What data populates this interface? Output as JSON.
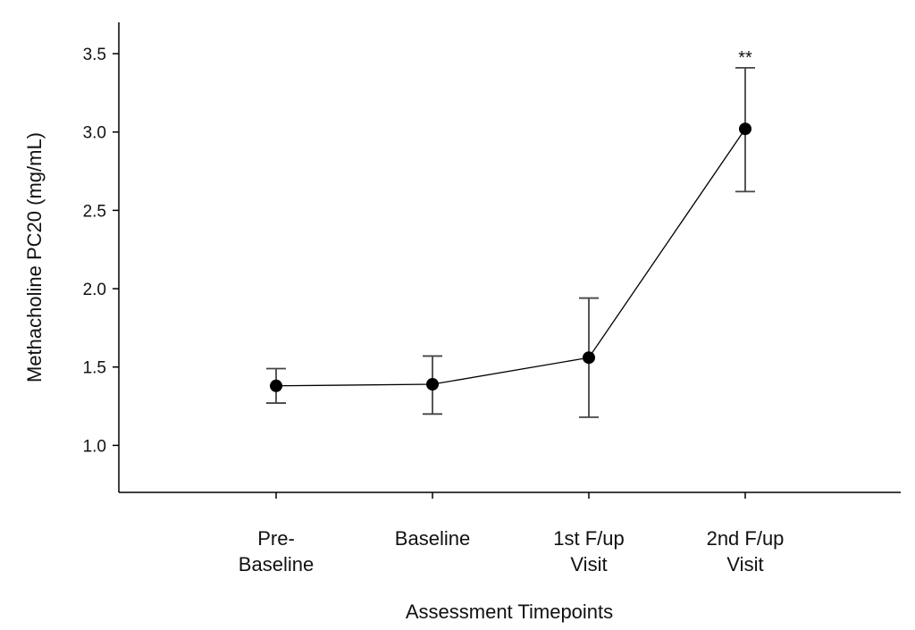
{
  "chart_data": {
    "type": "line",
    "categories": [
      [
        "Pre-",
        "Baseline"
      ],
      [
        "Baseline"
      ],
      [
        "1st F/up",
        "Visit"
      ],
      [
        "2nd F/up",
        "Visit"
      ]
    ],
    "series": [
      {
        "values": [
          1.38,
          1.39,
          1.56,
          3.02
        ],
        "error_low": [
          1.27,
          1.2,
          1.18,
          2.62
        ],
        "error_high": [
          1.49,
          1.57,
          1.94,
          3.41
        ],
        "color": "#000000"
      }
    ],
    "yticks": [
      "1.0",
      "1.5",
      "2.0",
      "2.5",
      "3.0",
      "3.5"
    ],
    "ylim": [
      0.7,
      3.7
    ],
    "xlabel": "Assessment Timepoints",
    "ylabel": "Methacholine PC20 (mg/mL)",
    "annotations": [
      {
        "category_index": 3,
        "text": "**"
      }
    ],
    "grid": false,
    "legend": "none"
  }
}
